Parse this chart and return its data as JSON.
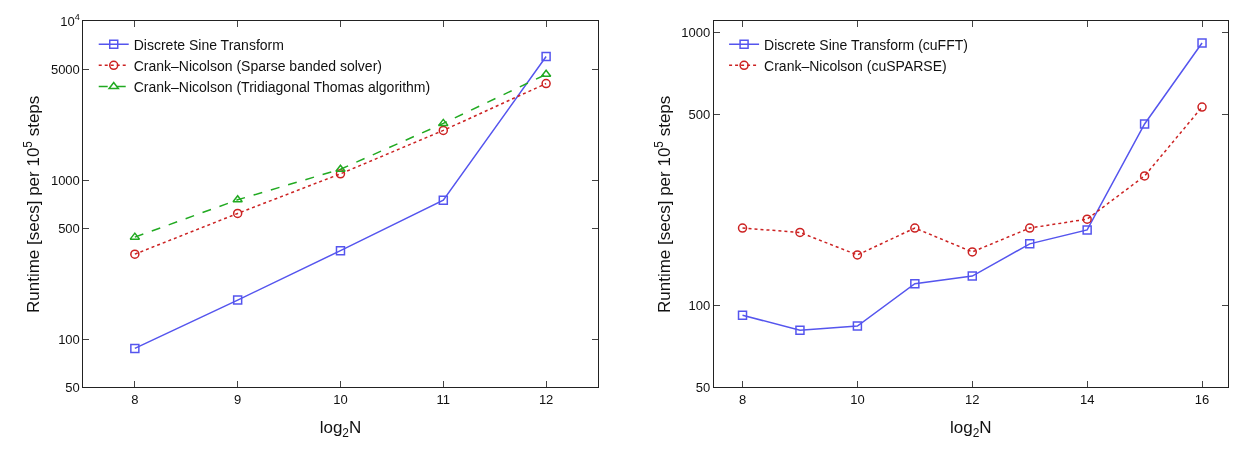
{
  "chart_data": [
    {
      "type": "line",
      "xlabel": "log$_{2}$N",
      "ylabel": "Runtime [secs] per 10$^{5}$ steps",
      "log": "y",
      "legend": "top left",
      "x": [
        8,
        9,
        10,
        11,
        12
      ],
      "xlim": [
        7.5,
        12.5
      ],
      "xticks": [
        8,
        9,
        10,
        11,
        12
      ],
      "ylim": [
        50,
        10000
      ],
      "yticks": [
        50,
        100,
        500,
        1000,
        5000,
        {
          "value": 10000,
          "label": "10$^{4}$"
        }
      ],
      "series": [
        {
          "name": "Discrete Sine Transform",
          "color": "#5555ee",
          "marker": "square",
          "line_style": "solid",
          "values": [
            88,
            177,
            362,
            750,
            6000
          ]
        },
        {
          "name": "Crank–Nicolson (Sparse banded solver)",
          "color": "#cc2222",
          "marker": "circle",
          "line_style": "dotted",
          "values": [
            344,
            620,
            1100,
            2060,
            4060
          ]
        },
        {
          "name": "Crank–Nicolson (Tridiagonal Thomas algorithm)",
          "color": "#22aa22",
          "marker": "triangle",
          "line_style": "dashed",
          "values": [
            440,
            755,
            1175,
            2280,
            4640
          ]
        }
      ]
    },
    {
      "type": "line",
      "xlabel": "log$_{2}$N",
      "ylabel": "Runtime [secs] per 10$^{5}$ steps",
      "log": "y",
      "legend": "top left",
      "x": [
        8,
        9,
        10,
        11,
        12,
        13,
        14,
        15,
        16
      ],
      "xlim": [
        7.5,
        16.45
      ],
      "xticks": [
        8,
        10,
        12,
        14,
        16
      ],
      "ylim": [
        50,
        1100
      ],
      "yticks": [
        50,
        100,
        500,
        1000
      ],
      "series": [
        {
          "name": "Discrete Sine Transform (cuFFT)",
          "color": "#5555ee",
          "marker": "square",
          "line_style": "solid",
          "values": [
            92,
            81,
            84,
            120,
            128,
            168,
            189,
            462,
            915
          ]
        },
        {
          "name": "Crank–Nicolson (cuSPARSE)",
          "color": "#cc2222",
          "marker": "circle",
          "line_style": "dotted",
          "values": [
            192,
            185,
            153,
            192,
            157,
            192,
            207,
            298,
            533
          ]
        }
      ]
    }
  ]
}
